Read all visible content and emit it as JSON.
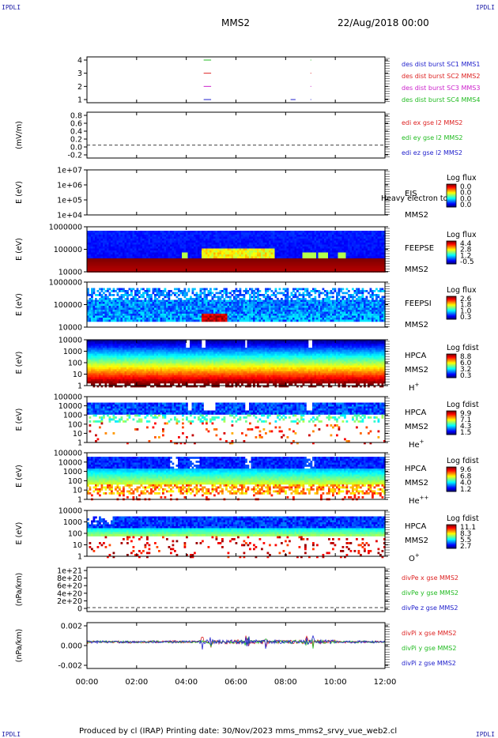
{
  "corner_label": "IPDLI",
  "header": {
    "spacecraft": "MMS2",
    "date": "22/Aug/2018 00:00"
  },
  "footer": "Produced by cl (IRAP)   Printing date: 30/Nov/2023   mms_mms2_srvy_vue_web2.cl",
  "chart_data": {
    "type": "heatmap",
    "x_axis": {
      "ticks": [
        "00:00",
        "02:00",
        "04:00",
        "06:00",
        "08:00",
        "10:00",
        "12:00"
      ],
      "range_hours": [
        0,
        12
      ]
    },
    "panels": [
      {
        "id": "burst",
        "type": "line",
        "yticks": [
          "4",
          "3",
          "2",
          "1"
        ],
        "legend": [
          {
            "text": "des dist burst SC1 MMS1",
            "color": "#2222cc"
          },
          {
            "text": "des dist burst SC2 MMS2",
            "color": "#dd2222"
          },
          {
            "text": "des dist burst SC3 MMS3",
            "color": "#cc22cc"
          },
          {
            "text": "des dist burst SC4 MMS4",
            "color": "#22bb22"
          }
        ],
        "segments": [
          {
            "level": 4,
            "start_h": 4.7,
            "end_h": 5.0,
            "color": "#22bb22"
          },
          {
            "level": 4,
            "start_h": 9.0,
            "end_h": 9.03,
            "color": "#22bb22"
          },
          {
            "level": 3,
            "start_h": 4.7,
            "end_h": 5.0,
            "color": "#dd2222"
          },
          {
            "level": 3,
            "start_h": 9.0,
            "end_h": 9.03,
            "color": "#dd2222"
          },
          {
            "level": 2,
            "start_h": 4.7,
            "end_h": 5.0,
            "color": "#cc22cc"
          },
          {
            "level": 2,
            "start_h": 9.0,
            "end_h": 9.03,
            "color": "#cc22cc"
          },
          {
            "level": 1,
            "start_h": 4.7,
            "end_h": 5.0,
            "color": "#2222cc"
          },
          {
            "level": 1,
            "start_h": 8.2,
            "end_h": 8.4,
            "color": "#2222cc"
          },
          {
            "level": 1,
            "start_h": 9.0,
            "end_h": 9.03,
            "color": "#2222cc"
          }
        ]
      },
      {
        "id": "edi",
        "type": "line",
        "ylabel": "(mV/m)",
        "yticks": [
          "0.8",
          "0.6",
          "0.4",
          "0.2",
          "0.0",
          "-0.2"
        ],
        "legend": [
          {
            "text": "edi ex gse l2 MMS2",
            "color": "#dd2222"
          },
          {
            "text": "edi ey gse l2 MMS2",
            "color": "#22bb22"
          },
          {
            "text": "edi ez gse l2 MMS2",
            "color": "#2222cc"
          }
        ],
        "dashed_zero": true
      },
      {
        "id": "eis",
        "type": "heatmap",
        "ylabel": "E (eV)",
        "yticks": [
          "1e+07",
          "1e+06",
          "1e+05",
          "1e+04"
        ],
        "label_lines": [
          "EIS",
          "MMS2"
        ],
        "overlay_text": "Heavy electron to",
        "cbar": {
          "title": "Log flux",
          "ticks": [
            "0.0",
            "0.0",
            "0.0",
            "0.0"
          ]
        },
        "empty": true
      },
      {
        "id": "feeps_e",
        "type": "heatmap",
        "ylabel": "E (eV)",
        "yticks": [
          "1000000",
          "100000",
          "10000"
        ],
        "label_lines": [
          "FEEPSE",
          "MMS2"
        ],
        "cbar": {
          "title": "Log flux",
          "ticks": [
            "4.4",
            "2.8",
            "1.2",
            "-0.5"
          ]
        },
        "pattern": "feeps_e"
      },
      {
        "id": "feeps_i",
        "type": "heatmap",
        "ylabel": "E (eV)",
        "yticks": [
          "1000000",
          "100000",
          "10000"
        ],
        "label_lines": [
          "FEEPSI",
          "MMS2"
        ],
        "cbar": {
          "title": "Log flux",
          "ticks": [
            "2.6",
            "1.8",
            "1.0",
            "0.3"
          ]
        },
        "pattern": "feeps_i"
      },
      {
        "id": "hpca_h",
        "type": "heatmap",
        "ylabel": "E (eV)",
        "yticks": [
          "10000",
          "1000",
          "100",
          "10",
          "1"
        ],
        "label_lines": [
          "HPCA",
          "MMS2"
        ],
        "species": "H",
        "species_sup": "+",
        "cbar": {
          "title": "Log fdist",
          "ticks": [
            "8.8",
            "6.0",
            "3.2",
            "0.3"
          ]
        },
        "pattern": "hpca_h"
      },
      {
        "id": "hpca_he",
        "type": "heatmap",
        "ylabel": "E (eV)",
        "yticks": [
          "100000",
          "10000",
          "1000",
          "100",
          "10",
          "1"
        ],
        "label_lines": [
          "HPCA",
          "MMS2"
        ],
        "species": "He",
        "species_sup": "+",
        "cbar": {
          "title": "Log fdist",
          "ticks": [
            "9.9",
            "7.1",
            "4.3",
            "1.5"
          ]
        },
        "pattern": "hpca_he"
      },
      {
        "id": "hpca_hepp",
        "type": "heatmap",
        "ylabel": "E (eV)",
        "yticks": [
          "100000",
          "10000",
          "1000",
          "100",
          "10",
          "1"
        ],
        "label_lines": [
          "HPCA",
          "MMS2"
        ],
        "species": "He",
        "species_sup": "++",
        "cbar": {
          "title": "Log fdist",
          "ticks": [
            "9.6",
            "6.8",
            "4.0",
            "1.2"
          ]
        },
        "pattern": "hpca_hepp"
      },
      {
        "id": "hpca_o",
        "type": "heatmap",
        "ylabel": "E (eV)",
        "yticks": [
          "10000",
          "1000",
          "100",
          "10",
          "1"
        ],
        "label_lines": [
          "HPCA",
          "MMS2"
        ],
        "species": "O",
        "species_sup": "+",
        "cbar": {
          "title": "Log fdist",
          "ticks": [
            "11.1",
            "8.3",
            "5.5",
            "2.7"
          ]
        },
        "pattern": "hpca_o"
      },
      {
        "id": "divpe",
        "type": "line",
        "ylabel": "(nPa/km)",
        "yticks": [
          "1e+21",
          "8e+20",
          "6e+20",
          "4e+20",
          "2e+20",
          "0"
        ],
        "legend": [
          {
            "text": "divPe x gse MMS2",
            "color": "#dd2222"
          },
          {
            "text": "divPe y gse MMS2",
            "color": "#22bb22"
          },
          {
            "text": "divPe z gse MMS2",
            "color": "#2222cc"
          }
        ],
        "dashed_zero": true
      },
      {
        "id": "divpi",
        "type": "line",
        "ylabel": "(nPa/km)",
        "yticks": [
          "0.002",
          "0.000",
          "-0.002"
        ],
        "legend": [
          {
            "text": "divPi x gse MMS2",
            "color": "#dd2222"
          },
          {
            "text": "divPi y gse MMS2",
            "color": "#22bb22"
          },
          {
            "text": "divPi z gse MMS2",
            "color": "#2222cc"
          }
        ],
        "spikes_h": [
          4.65,
          5.0,
          6.4,
          6.5,
          7.2,
          8.85,
          9.1
        ]
      }
    ]
  }
}
